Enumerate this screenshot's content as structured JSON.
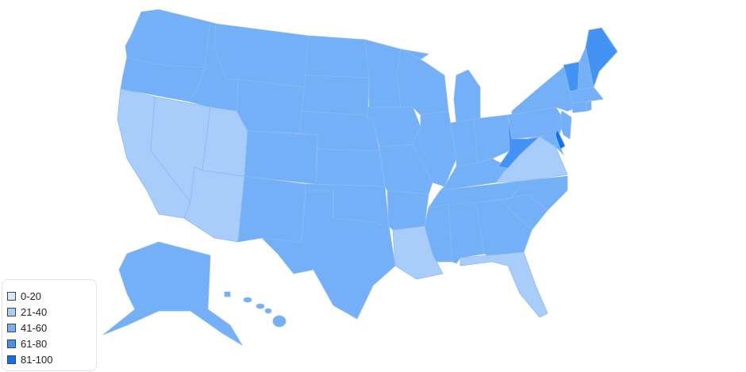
{
  "legend": [
    {
      "label": "0-20",
      "color": "#d6e8fc"
    },
    {
      "label": "21-40",
      "color": "#a9cdfa"
    },
    {
      "label": "41-60",
      "color": "#74b0f7"
    },
    {
      "label": "61-80",
      "color": "#4393f4"
    },
    {
      "label": "81-100",
      "color": "#0a73ef"
    }
  ],
  "states": [
    {
      "name": "Washington",
      "range": "41-60"
    },
    {
      "name": "Oregon",
      "range": "41-60"
    },
    {
      "name": "California",
      "range": "21-40"
    },
    {
      "name": "Nevada",
      "range": "21-40"
    },
    {
      "name": "Idaho",
      "range": "41-60"
    },
    {
      "name": "Montana",
      "range": "41-60"
    },
    {
      "name": "Wyoming",
      "range": "41-60"
    },
    {
      "name": "Utah",
      "range": "21-40"
    },
    {
      "name": "Arizona",
      "range": "21-40"
    },
    {
      "name": "Colorado",
      "range": "41-60"
    },
    {
      "name": "New Mexico",
      "range": "41-60"
    },
    {
      "name": "North Dakota",
      "range": "41-60"
    },
    {
      "name": "South Dakota",
      "range": "41-60"
    },
    {
      "name": "Nebraska",
      "range": "41-60"
    },
    {
      "name": "Kansas",
      "range": "41-60"
    },
    {
      "name": "Oklahoma",
      "range": "41-60"
    },
    {
      "name": "Texas",
      "range": "41-60"
    },
    {
      "name": "Minnesota",
      "range": "41-60"
    },
    {
      "name": "Iowa",
      "range": "41-60"
    },
    {
      "name": "Missouri",
      "range": "41-60"
    },
    {
      "name": "Arkansas",
      "range": "41-60"
    },
    {
      "name": "Louisiana",
      "range": "21-40"
    },
    {
      "name": "Wisconsin",
      "range": "41-60"
    },
    {
      "name": "Illinois",
      "range": "41-60"
    },
    {
      "name": "Michigan",
      "range": "41-60"
    },
    {
      "name": "Indiana",
      "range": "41-60"
    },
    {
      "name": "Ohio",
      "range": "41-60"
    },
    {
      "name": "Kentucky",
      "range": "41-60"
    },
    {
      "name": "Tennessee",
      "range": "41-60"
    },
    {
      "name": "Mississippi",
      "range": "41-60"
    },
    {
      "name": "Alabama",
      "range": "41-60"
    },
    {
      "name": "Georgia",
      "range": "41-60"
    },
    {
      "name": "Florida",
      "range": "21-40"
    },
    {
      "name": "South Carolina",
      "range": "41-60"
    },
    {
      "name": "North Carolina",
      "range": "41-60"
    },
    {
      "name": "Virginia",
      "range": "21-40"
    },
    {
      "name": "West Virginia",
      "range": "61-80"
    },
    {
      "name": "Pennsylvania",
      "range": "41-60"
    },
    {
      "name": "New York",
      "range": "41-60"
    },
    {
      "name": "Maryland",
      "range": "41-60"
    },
    {
      "name": "Delaware",
      "range": "81-100"
    },
    {
      "name": "New Jersey",
      "range": "41-60"
    },
    {
      "name": "Vermont",
      "range": "61-80"
    },
    {
      "name": "New Hampshire",
      "range": "41-60"
    },
    {
      "name": "Maine",
      "range": "61-80"
    },
    {
      "name": "Massachusetts",
      "range": "41-60"
    },
    {
      "name": "Connecticut",
      "range": "41-60"
    },
    {
      "name": "Rhode Island",
      "range": "41-60"
    },
    {
      "name": "Alaska",
      "range": "41-60"
    },
    {
      "name": "Hawaii",
      "range": "41-60"
    }
  ]
}
